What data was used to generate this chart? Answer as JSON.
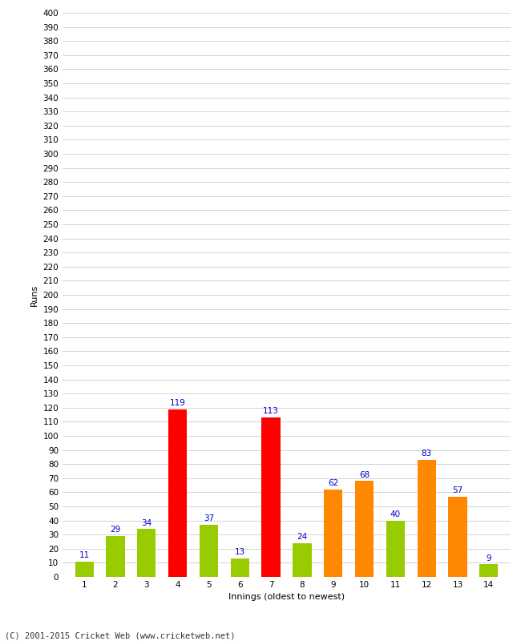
{
  "xlabel": "Innings (oldest to newest)",
  "ylabel": "Runs",
  "footer": "(C) 2001-2015 Cricket Web (www.cricketweb.net)",
  "categories": [
    1,
    2,
    3,
    4,
    5,
    6,
    7,
    8,
    9,
    10,
    11,
    12,
    13,
    14
  ],
  "values": [
    11,
    29,
    34,
    119,
    37,
    13,
    113,
    24,
    62,
    68,
    40,
    83,
    57,
    9
  ],
  "bar_colors": [
    "#99cc00",
    "#99cc00",
    "#99cc00",
    "#ff0000",
    "#99cc00",
    "#99cc00",
    "#ff0000",
    "#99cc00",
    "#ff8800",
    "#ff8800",
    "#99cc00",
    "#ff8800",
    "#ff8800",
    "#99cc00"
  ],
  "label_color": "#0000cc",
  "ylim": [
    0,
    400
  ],
  "ytick_step": 10,
  "background_color": "#ffffff",
  "grid_color": "#cccccc",
  "bar_width": 0.6,
  "label_fontsize": 7.5,
  "axis_label_fontsize": 8,
  "tick_fontsize": 7.5,
  "footer_fontsize": 7.5
}
